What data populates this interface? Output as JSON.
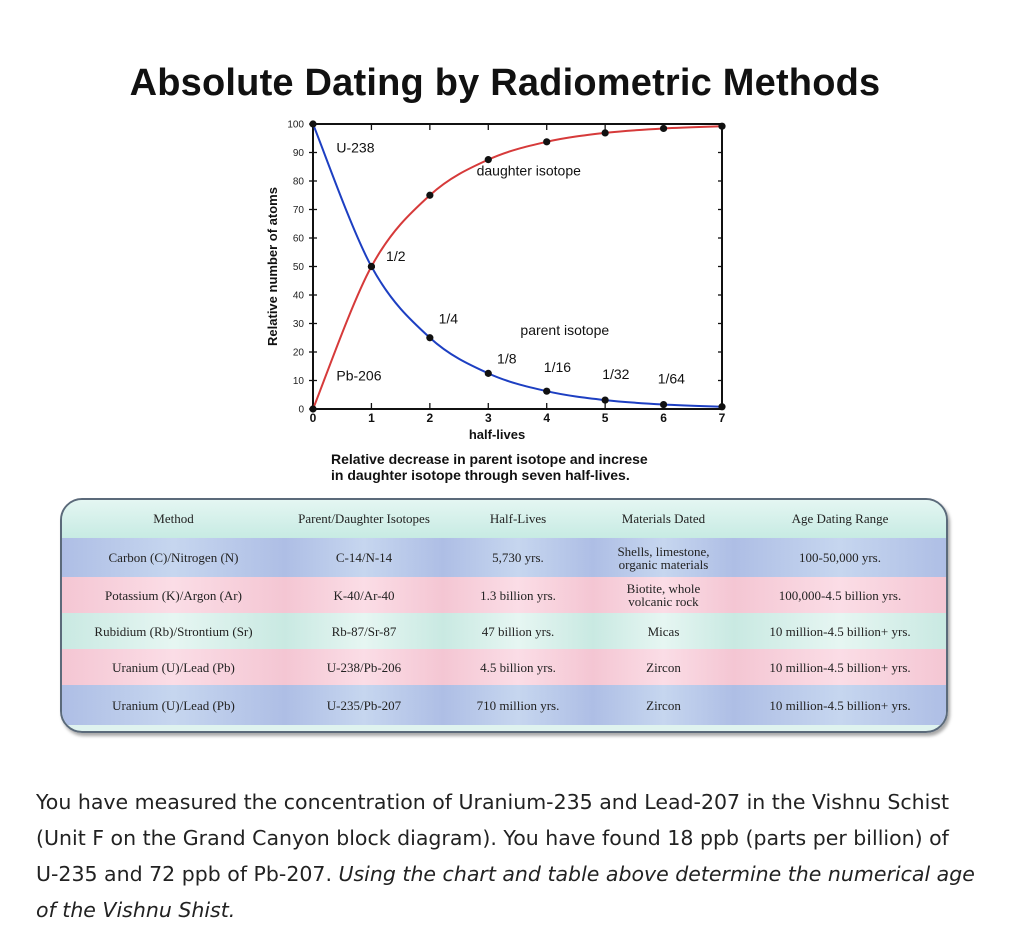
{
  "title": "Absolute Dating by Radiometric Methods",
  "chart_data": {
    "type": "line",
    "xlabel": "half-lives",
    "ylabel": "Relative number of atoms",
    "x_ticks": [
      0,
      1,
      2,
      3,
      4,
      5,
      6,
      7
    ],
    "y_ticks": [
      0,
      10,
      20,
      30,
      40,
      50,
      60,
      70,
      80,
      90,
      100
    ],
    "xlim": [
      0,
      7
    ],
    "ylim": [
      0,
      100
    ],
    "grid": false,
    "series": [
      {
        "name": "parent isotope",
        "color": "#1d3fc2",
        "points": [
          [
            0,
            100
          ],
          [
            1,
            50
          ],
          [
            2,
            25
          ],
          [
            3,
            12.5
          ],
          [
            4,
            6.25
          ],
          [
            5,
            3.125
          ],
          [
            6,
            1.5625
          ],
          [
            7,
            0.78
          ]
        ]
      },
      {
        "name": "daughter isotope",
        "color": "#d63a3a",
        "points": [
          [
            0,
            0
          ],
          [
            1,
            50
          ],
          [
            2,
            75
          ],
          [
            3,
            87.5
          ],
          [
            4,
            93.75
          ],
          [
            5,
            96.875
          ],
          [
            6,
            98.4375
          ],
          [
            7,
            99.22
          ]
        ]
      }
    ],
    "annotations": [
      {
        "text": "U-238",
        "x": 0.4,
        "y": 90
      },
      {
        "text": "daughter isotope",
        "x": 2.8,
        "y": 82
      },
      {
        "text": "1/2",
        "x": 1.25,
        "y": 52
      },
      {
        "text": "1/4",
        "x": 2.15,
        "y": 30
      },
      {
        "text": "parent isotope",
        "x": 3.55,
        "y": 26
      },
      {
        "text": "1/8",
        "x": 3.15,
        "y": 16
      },
      {
        "text": "1/16",
        "x": 3.95,
        "y": 13
      },
      {
        "text": "1/32",
        "x": 4.95,
        "y": 10.5
      },
      {
        "text": "1/64",
        "x": 5.9,
        "y": 9
      },
      {
        "text": "Pb-206",
        "x": 0.4,
        "y": 10
      }
    ]
  },
  "caption": {
    "line1": "Relative decrease in parent isotope and increse",
    "line2": "in daughter isotope through seven half-lives."
  },
  "table": {
    "headers": [
      "Method",
      "Parent/Daughter Isotopes",
      "Half-Lives",
      "Materials Dated",
      "Age Dating Range"
    ],
    "rows": [
      [
        "Carbon (C)/Nitrogen (N)",
        "C-14/N-14",
        "5,730 yrs.",
        "Shells, limestone, organic materials",
        "100-50,000 yrs."
      ],
      [
        "Potassium (K)/Argon (Ar)",
        "K-40/Ar-40",
        "1.3 billion yrs.",
        "Biotite, whole volcanic rock",
        "100,000-4.5 billion yrs."
      ],
      [
        "Rubidium (Rb)/Strontium (Sr)",
        "Rb-87/Sr-87",
        "47 billion yrs.",
        "Micas",
        "10 million-4.5 billion+ yrs."
      ],
      [
        "Uranium (U)/Lead (Pb)",
        "U-238/Pb-206",
        "4.5 billion yrs.",
        "Zircon",
        "10 million-4.5 billion+ yrs."
      ],
      [
        "Uranium (U)/Lead (Pb)",
        "U-235/Pb-207",
        "710 million yrs.",
        "Zircon",
        "10 million-4.5 billion+ yrs."
      ]
    ]
  },
  "question": {
    "plain": "You have measured the concentration of Uranium-235 and Lead-207 in the Vishnu Schist (Unit F on the Grand Canyon block diagram). You have found 18 ppb (parts per billion) of U-235 and 72 ppb of Pb-207. ",
    "italic": "Using the chart and table above determine the numerical age of the Vishnu Shist."
  }
}
